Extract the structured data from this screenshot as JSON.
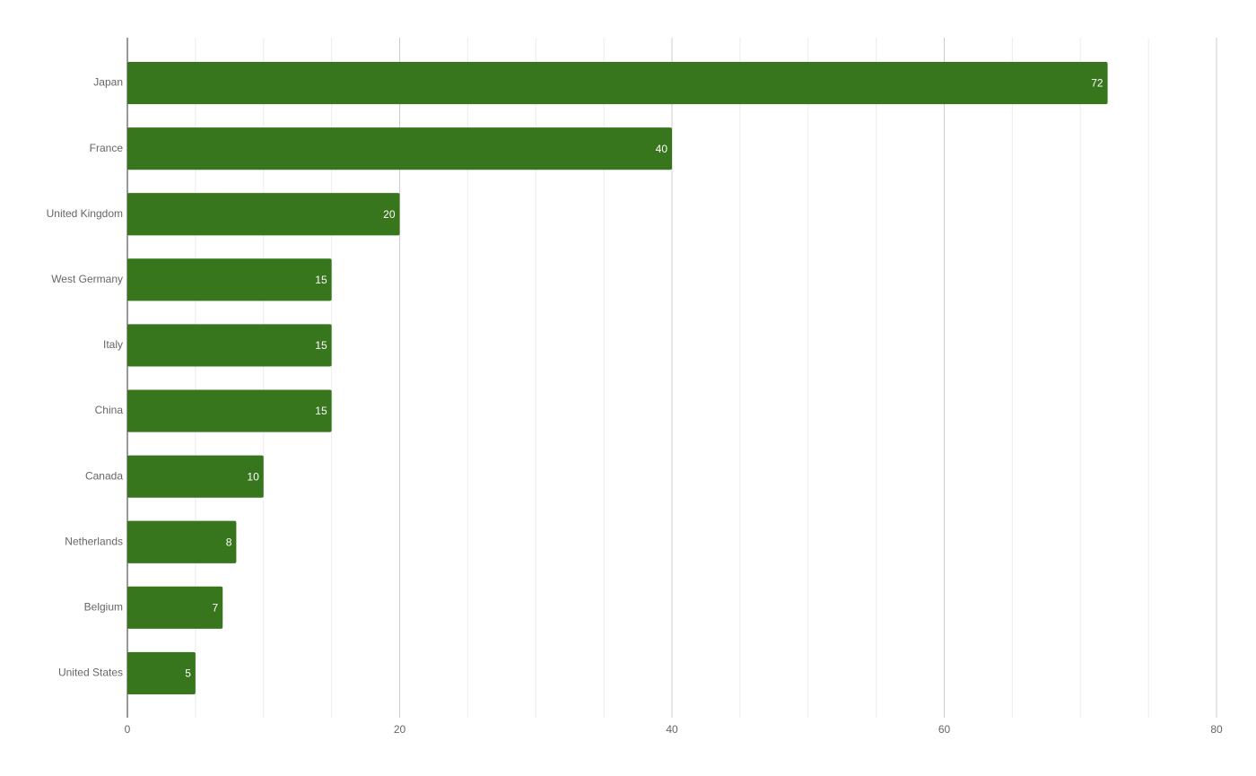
{
  "chart_data": {
    "type": "bar",
    "orientation": "horizontal",
    "categories": [
      "Japan",
      "France",
      "United Kingdom",
      "West Germany",
      "Italy",
      "China",
      "Canada",
      "Netherlands",
      "Belgium",
      "United States"
    ],
    "values": [
      72,
      40,
      20,
      15,
      15,
      15,
      10,
      8,
      7,
      5
    ],
    "color": "#38761d",
    "xlim": [
      0,
      80
    ],
    "xticks": [
      0,
      20,
      40,
      60,
      80
    ],
    "minor_xticks": [
      5,
      10,
      15,
      25,
      30,
      35,
      45,
      50,
      55,
      65,
      70,
      75
    ],
    "grid": true,
    "data_labels": true
  }
}
